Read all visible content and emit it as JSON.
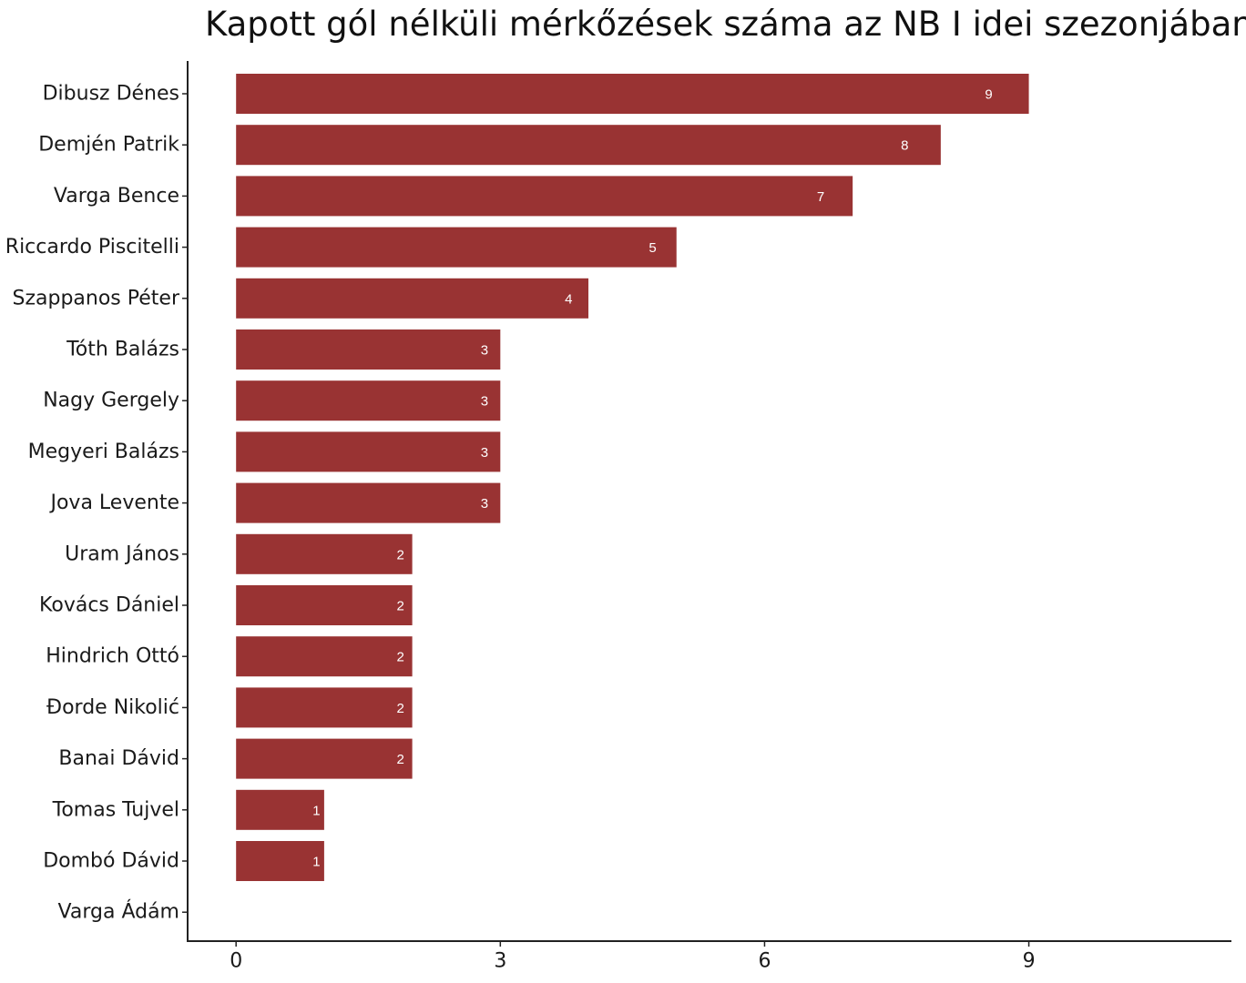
{
  "chart_data": {
    "type": "bar",
    "orientation": "horizontal",
    "title": "Kapott gól nélküli mérkőzések száma az NB I idei szezonjában",
    "xlabel": "",
    "ylabel": "",
    "categories": [
      "Dibusz Dénes",
      "Demjén Patrik",
      "Varga Bence",
      "Riccardo Piscitelli",
      "Szappanos Péter",
      "Tóth Balázs",
      "Nagy Gergely",
      "Megyeri Balázs",
      "Jova Levente",
      "Uram János",
      "Kovács Dániel",
      "Hindrich Ottó",
      "Đorde Nikolić",
      "Banai Dávid",
      "Tomas Tujvel",
      "Dombó Dávid",
      "Varga Ádám"
    ],
    "values": [
      9,
      8,
      7,
      5,
      4,
      3,
      3,
      3,
      3,
      2,
      2,
      2,
      2,
      2,
      1,
      1,
      0
    ],
    "xlim": [
      -0.55,
      11.3
    ],
    "xticks": [
      0,
      3,
      6,
      9
    ],
    "grid": false,
    "legend": "none",
    "bar_color": "#993333",
    "label_color": "#ffffff"
  }
}
